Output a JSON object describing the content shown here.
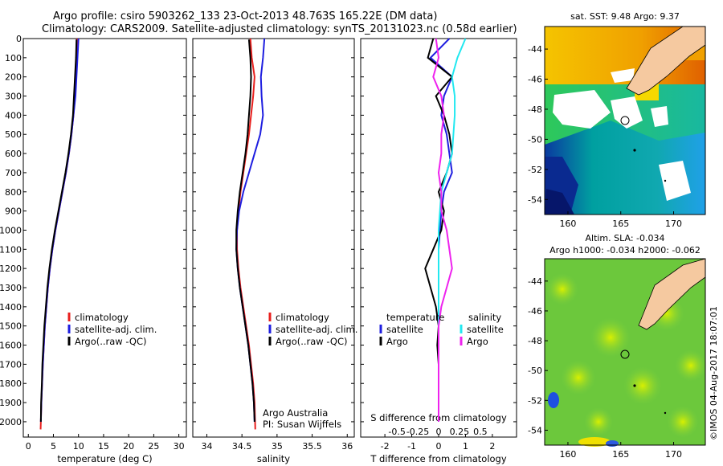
{
  "title_line1": "Argo profile: csiro 5903262_133 23-Oct-2013 48.763S 165.22E (DM data)",
  "title_line2": "Climatology: CARS2009. Satellite-adjusted climatology: synTS_20131023.nc (0.58d earlier)",
  "credit": "Argo Australia",
  "pi": "PI: Susan Wijffels",
  "stamp": "©IMOS 04-Aug-2017 18:07:01",
  "colors": {
    "climatology": "#e8201e",
    "satellite": "#1e1ee0",
    "argo": "#000000",
    "sat_s": "#22e8f0",
    "argo_s": "#ee22ee"
  },
  "chart_data": [
    {
      "type": "line",
      "xlabel": "temperature (deg C)",
      "ylabel": "",
      "xlim": [
        -1,
        31.5
      ],
      "ylim": [
        2080,
        0
      ],
      "xticks": [
        0,
        5,
        10,
        15,
        20,
        25,
        30
      ],
      "yticks": [
        0,
        100,
        200,
        300,
        400,
        500,
        600,
        700,
        800,
        900,
        1000,
        1100,
        1200,
        1300,
        1400,
        1500,
        1600,
        1700,
        1800,
        1900,
        2000
      ],
      "legend": [
        "climatology",
        "satellite-adj. clim.",
        "Argo(..raw -QC)"
      ],
      "series": [
        {
          "name": "climatology",
          "color": "#e8201e",
          "x": [
            9.7,
            9.6,
            9.5,
            9.3,
            9.0,
            8.6,
            8.1,
            7.5,
            6.8,
            6.1,
            5.4,
            4.8,
            4.3,
            3.9,
            3.6,
            3.3,
            3.1,
            2.9,
            2.75,
            2.6,
            2.5,
            2.45
          ],
          "y": [
            0,
            100,
            200,
            300,
            400,
            500,
            600,
            700,
            800,
            900,
            1000,
            1100,
            1200,
            1300,
            1400,
            1500,
            1600,
            1700,
            1800,
            1900,
            2000,
            2040
          ]
        },
        {
          "name": "satellite-adj. clim.",
          "color": "#1e1ee0",
          "x": [
            10.0,
            9.8,
            9.6,
            9.4,
            9.0,
            8.6,
            8.1,
            7.5,
            6.8,
            6.1,
            5.4,
            4.8,
            4.3,
            3.9,
            3.6,
            3.3,
            3.1,
            2.9,
            2.75,
            2.6,
            2.5
          ],
          "y": [
            0,
            100,
            200,
            300,
            400,
            500,
            600,
            700,
            800,
            900,
            1000,
            1100,
            1200,
            1300,
            1400,
            1500,
            1600,
            1700,
            1800,
            1900,
            2000
          ]
        },
        {
          "name": "Argo(..raw -QC)",
          "color": "#000000",
          "x": [
            9.6,
            9.5,
            9.3,
            9.1,
            8.9,
            8.5,
            8.0,
            7.4,
            6.7,
            6.0,
            5.3,
            4.7,
            4.2,
            3.8,
            3.5,
            3.2,
            3.0,
            2.8,
            2.7,
            2.55,
            2.5
          ],
          "y": [
            5,
            100,
            200,
            300,
            400,
            500,
            600,
            700,
            800,
            900,
            1000,
            1100,
            1200,
            1300,
            1400,
            1500,
            1600,
            1700,
            1800,
            1900,
            2000
          ]
        }
      ]
    },
    {
      "type": "line",
      "xlabel": "salinity",
      "xlim": [
        33.8,
        36.1
      ],
      "ylim": [
        2080,
        0
      ],
      "xticks": [
        34,
        34.5,
        35,
        35.5,
        36
      ],
      "legend": [
        "climatology",
        "satellite-adj. clim.",
        "Argo(..raw -QC)"
      ],
      "series": [
        {
          "name": "climatology",
          "color": "#e8201e",
          "x": [
            34.62,
            34.64,
            34.68,
            34.66,
            34.63,
            34.6,
            34.56,
            34.52,
            34.48,
            34.45,
            34.43,
            34.43,
            34.45,
            34.48,
            34.52,
            34.56,
            34.6,
            34.63,
            34.66,
            34.68,
            34.69
          ],
          "y": [
            0,
            100,
            200,
            300,
            400,
            500,
            600,
            700,
            800,
            900,
            1000,
            1100,
            1200,
            1300,
            1400,
            1500,
            1600,
            1700,
            1800,
            1900,
            2040
          ]
        },
        {
          "name": "satellite-adj. clim.",
          "color": "#1e1ee0",
          "x": [
            34.82,
            34.8,
            34.77,
            34.78,
            34.8,
            34.76,
            34.68,
            34.6,
            34.52,
            34.46,
            34.43,
            34.42,
            34.44,
            34.47,
            34.51,
            34.55,
            34.59,
            34.62,
            34.65,
            34.67,
            34.68
          ],
          "y": [
            0,
            100,
            200,
            300,
            400,
            500,
            600,
            700,
            800,
            900,
            1000,
            1100,
            1200,
            1300,
            1400,
            1500,
            1600,
            1700,
            1800,
            1900,
            2000
          ]
        },
        {
          "name": "Argo(..raw -QC)",
          "color": "#000000",
          "x": [
            34.6,
            34.62,
            34.63,
            34.62,
            34.6,
            34.58,
            34.55,
            34.51,
            34.47,
            34.44,
            34.42,
            34.42,
            34.44,
            34.47,
            34.51,
            34.55,
            34.59,
            34.62,
            34.65,
            34.67,
            34.68
          ],
          "y": [
            5,
            100,
            200,
            300,
            400,
            500,
            600,
            700,
            800,
            900,
            1000,
            1100,
            1200,
            1300,
            1400,
            1500,
            1600,
            1700,
            1800,
            1900,
            2000
          ]
        }
      ]
    },
    {
      "type": "line",
      "xlabel": "T difference from climatology",
      "top_label": "S difference from climatology",
      "xlim": [
        -2.9,
        2.9
      ],
      "ylim": [
        2080,
        0
      ],
      "xticks": [
        -2,
        -1,
        0,
        1,
        2
      ],
      "xticks_s": [
        -0.5,
        -0.25,
        0,
        0.25,
        0.5
      ],
      "legend_left": {
        "title": "temperature",
        "items": [
          "satellite",
          "Argo"
        ]
      },
      "legend_right": {
        "title": "salinity",
        "items": [
          "satellite",
          "Argo"
        ]
      },
      "series": [
        {
          "name": "temperature satellite",
          "color": "#1e1ee0",
          "x": [
            0.4,
            -0.3,
            0.5,
            0.2,
            0.1,
            0.3,
            0.4,
            0.5,
            0.2,
            0.1,
            0.05,
            0.0,
            0.0,
            0.0,
            0.0,
            0.0,
            0.0,
            0.0,
            0.0,
            0.0,
            0.0
          ],
          "y": [
            0,
            100,
            200,
            300,
            400,
            500,
            600,
            700,
            800,
            900,
            1000,
            1100,
            1200,
            1300,
            1400,
            1500,
            1600,
            1700,
            1800,
            1900,
            2000
          ]
        },
        {
          "name": "temperature Argo",
          "color": "#000000",
          "x": [
            -0.2,
            -0.4,
            0.5,
            -0.1,
            0.2,
            0.4,
            0.5,
            0.3,
            0.0,
            0.2,
            0.1,
            -0.2,
            -0.5,
            -0.3,
            -0.1,
            0.0,
            -0.05,
            0.0,
            0.0,
            0.0,
            0.0
          ],
          "y": [
            0,
            100,
            200,
            300,
            400,
            500,
            600,
            700,
            800,
            900,
            1000,
            1100,
            1200,
            1300,
            1400,
            1500,
            1600,
            1700,
            1800,
            1900,
            2000
          ]
        },
        {
          "name": "salinity satellite",
          "color": "#22e8f0",
          "x": [
            1.0,
            0.7,
            0.5,
            0.6,
            0.6,
            0.55,
            0.5,
            0.3,
            0.1,
            0.05,
            0.0,
            0.0,
            0.0,
            0.0,
            0.0,
            0.0,
            0.0,
            0.0,
            0.0,
            0.0,
            0.0
          ],
          "y": [
            0,
            100,
            200,
            300,
            400,
            500,
            600,
            700,
            800,
            900,
            1000,
            1100,
            1200,
            1300,
            1400,
            1500,
            1600,
            1700,
            1800,
            1900,
            2000
          ]
        },
        {
          "name": "salinity Argo",
          "color": "#ee22ee",
          "x": [
            -0.1,
            0.0,
            -0.2,
            0.1,
            0.2,
            0.1,
            0.1,
            0.0,
            0.1,
            0.1,
            0.3,
            0.4,
            0.5,
            0.3,
            0.1,
            0.0,
            0.0,
            0.0,
            0.0,
            0.0,
            0.0
          ],
          "y": [
            0,
            100,
            200,
            300,
            400,
            500,
            600,
            700,
            800,
            900,
            1000,
            1100,
            1200,
            1300,
            1400,
            1500,
            1600,
            1700,
            1800,
            1900,
            2000
          ]
        }
      ]
    },
    {
      "type": "heatmap",
      "title": "sat. SST: 9.48 Argo: 9.37",
      "xlim": [
        157.8,
        173
      ],
      "ylim": [
        -55,
        -42.5
      ],
      "xticks": [
        160,
        165,
        170
      ],
      "yticks": [
        -44,
        -46,
        -48,
        -50,
        -52,
        -54
      ],
      "marker": {
        "lon": 165.22,
        "lat": -48.763
      }
    },
    {
      "type": "heatmap",
      "title": "Altim. SLA: -0.034",
      "subtitle": "Argo h1000: -0.034 h2000: -0.062",
      "xlim": [
        157.8,
        173
      ],
      "ylim": [
        -55,
        -42.5
      ],
      "xticks": [
        160,
        165,
        170
      ],
      "yticks": [
        -44,
        -46,
        -48,
        -50,
        -52,
        -54
      ],
      "marker": {
        "lon": 165.22,
        "lat": -48.763
      }
    }
  ]
}
